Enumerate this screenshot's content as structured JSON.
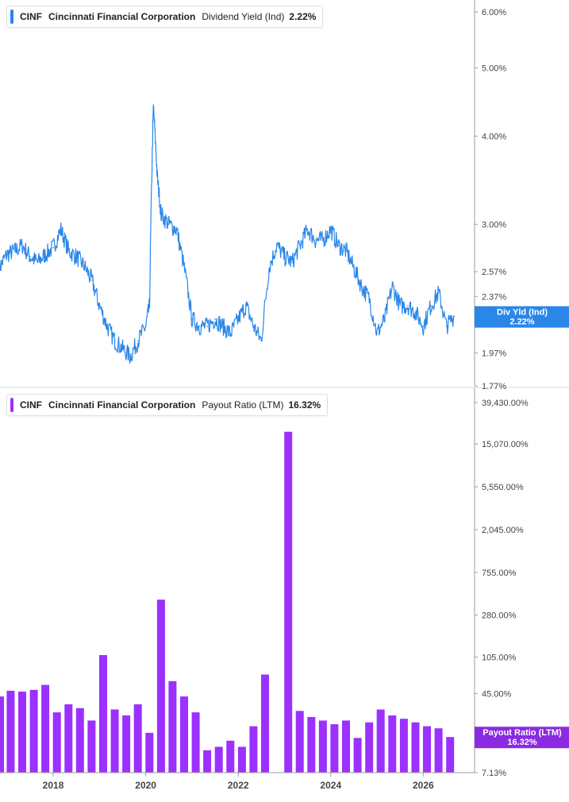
{
  "colors": {
    "dividend_line": "#2a86e8",
    "dividend_badge": "#2a86e8",
    "payout_bar": "#9b30ff",
    "payout_badge": "#8a2be2",
    "axis": "#9e9e9e",
    "tick_text": "#444444"
  },
  "top_legend": {
    "ticker": "CINF",
    "company": "Cincinnati Financial Corporation",
    "metric": "Dividend Yield (Ind)",
    "value": "2.22%"
  },
  "bottom_legend": {
    "ticker": "CINF",
    "company": "Cincinnati Financial Corporation",
    "metric": "Payout Ratio (LTM)",
    "value": "16.32%"
  },
  "top_badge": {
    "line1": "Div Yld (Ind)",
    "line2": "2.22%"
  },
  "bottom_badge": {
    "line1": "Payout Ratio (LTM)",
    "line2": "16.32%"
  },
  "chart_data": [
    {
      "type": "line",
      "series_label": "Dividend Yield (Ind)",
      "scale": "log",
      "ylim": [
        1.77,
        6.0
      ],
      "y_ticks": [
        6.0,
        5.0,
        4.0,
        3.0,
        2.57,
        2.37,
        1.97,
        1.77
      ],
      "y_tick_labels": [
        "6.00%",
        "5.00%",
        "4.00%",
        "3.00%",
        "2.57%",
        "2.37%",
        "1.97%",
        "1.77%"
      ],
      "x_range": [
        "2016-11",
        "2026-11"
      ],
      "last_value": 2.22,
      "x": [
        "2016-11",
        "2017-01",
        "2017-03",
        "2017-05",
        "2017-07",
        "2017-09",
        "2017-11",
        "2018-01",
        "2018-03",
        "2018-05",
        "2018-07",
        "2018-09",
        "2018-11",
        "2019-01",
        "2019-03",
        "2019-05",
        "2019-07",
        "2019-09",
        "2019-11",
        "2020-01",
        "2020-02",
        "2020-03",
        "2020-04",
        "2020-05",
        "2020-07",
        "2020-09",
        "2020-11",
        "2021-01",
        "2021-03",
        "2021-05",
        "2021-07",
        "2021-09",
        "2021-11",
        "2022-01",
        "2022-03",
        "2022-05",
        "2022-07",
        "2022-09",
        "2022-11",
        "2023-01",
        "2023-03",
        "2023-05",
        "2023-07",
        "2023-09",
        "2023-11",
        "2024-01",
        "2024-03",
        "2024-05",
        "2024-07",
        "2024-09",
        "2024-11",
        "2025-01",
        "2025-03",
        "2025-05",
        "2025-07",
        "2025-09",
        "2025-11",
        "2026-01",
        "2026-03",
        "2026-05",
        "2026-07",
        "2026-09"
      ],
      "y": [
        2.6,
        2.72,
        2.75,
        2.8,
        2.7,
        2.65,
        2.72,
        2.78,
        2.95,
        2.75,
        2.7,
        2.62,
        2.5,
        2.3,
        2.15,
        2.05,
        2.0,
        1.95,
        2.05,
        2.15,
        2.3,
        4.4,
        3.5,
        3.1,
        3.0,
        2.95,
        2.6,
        2.2,
        2.15,
        2.15,
        2.2,
        2.15,
        2.1,
        2.2,
        2.3,
        2.15,
        2.05,
        2.6,
        2.8,
        2.7,
        2.65,
        2.8,
        2.95,
        2.85,
        2.85,
        2.95,
        2.8,
        2.75,
        2.6,
        2.45,
        2.35,
        2.1,
        2.2,
        2.45,
        2.3,
        2.3,
        2.25,
        2.15,
        2.3,
        2.4,
        2.15,
        2.22
      ]
    },
    {
      "type": "bar",
      "series_label": "Payout Ratio (LTM)",
      "scale": "log",
      "ylim": [
        7.13,
        39430.0
      ],
      "y_ticks": [
        39430,
        15070,
        5550,
        2045,
        755,
        280,
        105,
        45,
        7.13
      ],
      "y_tick_labels": [
        "39,430.00%",
        "15,070.00%",
        "5,550.00%",
        "2,045.00%",
        "755.00%",
        "280.00%",
        "105.00%",
        "45.00%",
        "7.13%"
      ],
      "x_tick_labels": [
        "2018",
        "2020",
        "2022",
        "2024",
        "2026"
      ],
      "x_ticks": [
        2018.0,
        2020.0,
        2022.0,
        2024.0,
        2026.0
      ],
      "x_range": [
        2016.85,
        2026.8
      ],
      "last_value": 16.32,
      "x": [
        2016.85,
        2017.08,
        2017.33,
        2017.58,
        2017.83,
        2018.08,
        2018.33,
        2018.58,
        2018.83,
        2019.08,
        2019.33,
        2019.58,
        2019.83,
        2020.08,
        2020.33,
        2020.58,
        2020.83,
        2021.08,
        2021.33,
        2021.58,
        2021.83,
        2022.08,
        2022.33,
        2022.58,
        2022.83,
        2023.08,
        2023.33,
        2023.58,
        2023.83,
        2024.08,
        2024.33,
        2024.58,
        2024.83,
        2025.08,
        2025.33,
        2025.58,
        2025.83,
        2026.08,
        2026.33,
        2026.58
      ],
      "values": [
        42,
        48,
        47,
        49,
        55,
        29,
        35,
        32,
        24,
        110,
        31,
        27,
        35,
        18,
        400,
        60,
        42,
        29,
        12,
        13,
        15,
        13,
        21,
        70,
        null,
        20000,
        30,
        26,
        24,
        22,
        24,
        16,
        23,
        31,
        27,
        25,
        23,
        21,
        20,
        16.32
      ]
    }
  ]
}
